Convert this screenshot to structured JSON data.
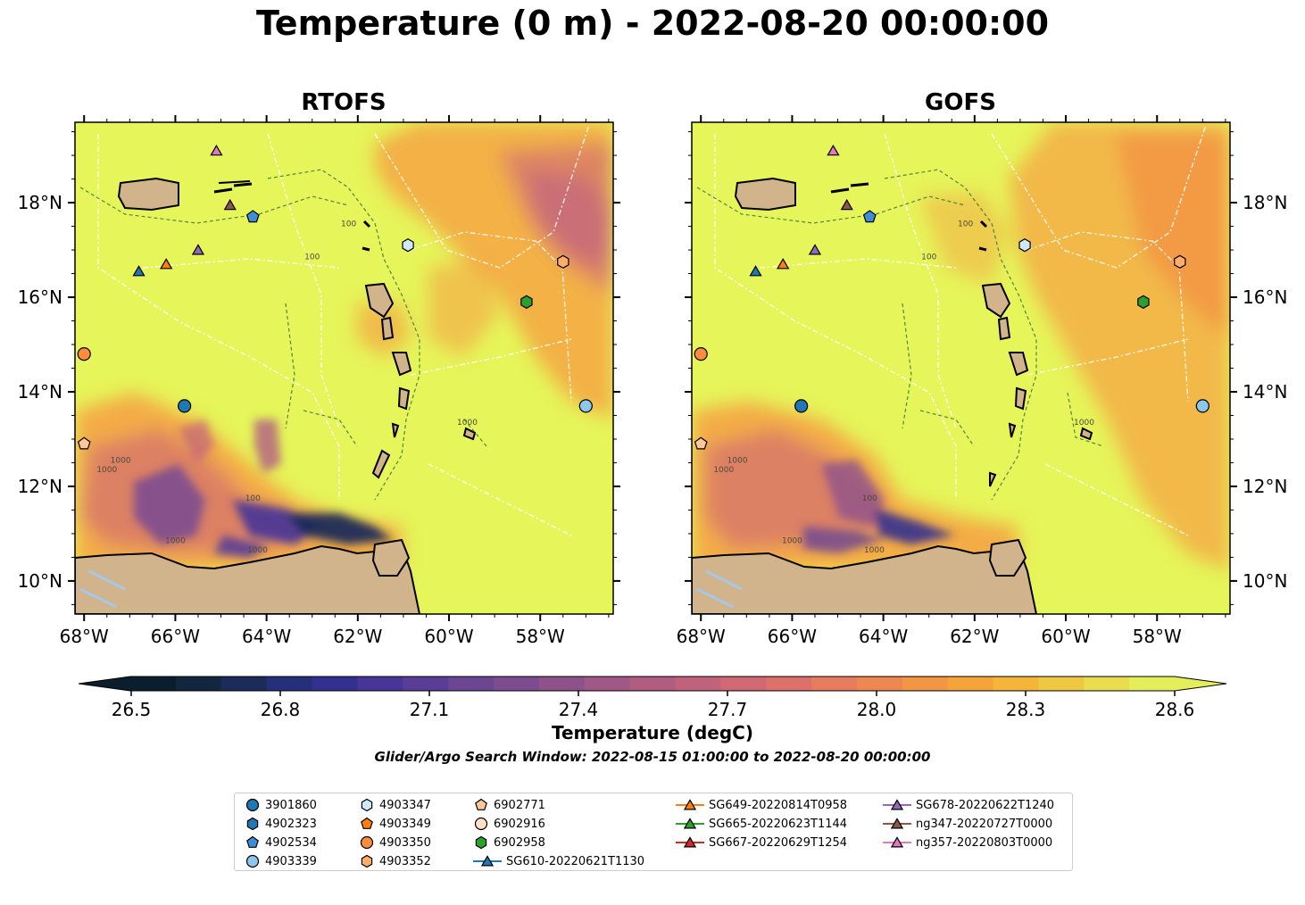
{
  "title": "Temperature (0 m) - 2022-08-20 00:00:00",
  "colors": {
    "land": "#d2b48c",
    "water_fill_high": "#e6f55a",
    "warm_orange": "#f5a443",
    "purple_mid": "#6a3d8f",
    "dark_navy": "#1a2a4a",
    "inland_water": "#a6c8e6"
  },
  "chart_data": [
    {
      "type": "heatmap",
      "panel": "RTOFS",
      "title": "RTOFS",
      "variable": "Temperature (degC)",
      "xlim": [
        -68.2,
        -56.4
      ],
      "ylim": [
        9.3,
        19.7
      ],
      "x_ticks": [
        "68°W",
        "66°W",
        "64°W",
        "62°W",
        "60°W",
        "58°W"
      ],
      "y_ticks": [
        "10°N",
        "12°N",
        "14°N",
        "16°N",
        "18°N"
      ],
      "y_tick_side": "left",
      "contour_labels": [
        "100",
        "100",
        "100",
        "1000",
        "1000",
        "1000",
        "1000",
        "1000"
      ],
      "markers": [
        {
          "id": "3901860",
          "lon": -65.8,
          "lat": 13.7
        },
        {
          "id": "4903350",
          "lon": -68.0,
          "lat": 14.8
        },
        {
          "id": "4903339",
          "lon": -57.0,
          "lat": 13.7
        },
        {
          "id": "6902958",
          "lon": -58.3,
          "lat": 15.9
        },
        {
          "id": "4903347",
          "lon": -60.9,
          "lat": 17.1
        },
        {
          "id": "4903352",
          "lon": -57.5,
          "lat": 16.75
        },
        {
          "id": "4902534",
          "lon": -64.3,
          "lat": 17.7
        },
        {
          "id": "6902771",
          "lon": -68.0,
          "lat": 12.9
        },
        {
          "id": "SG610-20220621T1130",
          "lon": -66.8,
          "lat": 16.55
        },
        {
          "id": "SG649-20220814T0958",
          "lon": -66.2,
          "lat": 16.7
        },
        {
          "id": "SG678-20220622T1240",
          "lon": -65.5,
          "lat": 17.0
        },
        {
          "id": "ng347-20220727T0000",
          "lon": -64.8,
          "lat": 17.95
        },
        {
          "id": "ng357-20220803T0000",
          "lon": -65.1,
          "lat": 19.1
        }
      ]
    },
    {
      "type": "heatmap",
      "panel": "GOFS",
      "title": "GOFS",
      "variable": "Temperature (degC)",
      "xlim": [
        -68.2,
        -56.4
      ],
      "ylim": [
        9.3,
        19.7
      ],
      "x_ticks": [
        "68°W",
        "66°W",
        "64°W",
        "62°W",
        "60°W",
        "58°W"
      ],
      "y_ticks": [
        "10°N",
        "12°N",
        "14°N",
        "16°N",
        "18°N"
      ],
      "y_tick_side": "right",
      "contour_labels": [
        "100",
        "100",
        "100",
        "1000",
        "1000",
        "1000",
        "1000",
        "1000"
      ],
      "markers": [
        {
          "id": "3901860",
          "lon": -65.8,
          "lat": 13.7
        },
        {
          "id": "4903350",
          "lon": -68.0,
          "lat": 14.8
        },
        {
          "id": "4903339",
          "lon": -57.0,
          "lat": 13.7
        },
        {
          "id": "6902958",
          "lon": -58.3,
          "lat": 15.9
        },
        {
          "id": "4903347",
          "lon": -60.9,
          "lat": 17.1
        },
        {
          "id": "4903352",
          "lon": -57.5,
          "lat": 16.75
        },
        {
          "id": "4902534",
          "lon": -64.3,
          "lat": 17.7
        },
        {
          "id": "6902771",
          "lon": -68.0,
          "lat": 12.9
        },
        {
          "id": "SG610-20220621T1130",
          "lon": -66.8,
          "lat": 16.55
        },
        {
          "id": "SG649-20220814T0958",
          "lon": -66.2,
          "lat": 16.7
        },
        {
          "id": "SG678-20220622T1240",
          "lon": -65.5,
          "lat": 17.0
        },
        {
          "id": "ng347-20220727T0000",
          "lon": -64.8,
          "lat": 17.95
        },
        {
          "id": "ng357-20220803T0000",
          "lon": -65.1,
          "lat": 19.1
        }
      ]
    }
  ],
  "colorbar": {
    "label": "Temperature (degC)",
    "vmin": 26.4,
    "vmax": 28.7,
    "ticks": [
      "26.5",
      "26.8",
      "27.1",
      "27.4",
      "27.7",
      "28.0",
      "28.3",
      "28.6"
    ],
    "tick_values": [
      26.5,
      26.8,
      27.1,
      27.4,
      27.7,
      28.0,
      28.3,
      28.6
    ],
    "colors": [
      "#0b1e2e",
      "#13263f",
      "#1b2c5a",
      "#262f7a",
      "#33308f",
      "#473597",
      "#5a3d96",
      "#6c4593",
      "#7d4c8f",
      "#8e528b",
      "#a05887",
      "#b15d82",
      "#c1627c",
      "#d16974",
      "#dd706b",
      "#e77b5e",
      "#ee8751",
      "#f29544",
      "#f4a43b",
      "#f4b53a",
      "#efc842",
      "#e9dc4d",
      "#e3ee5a"
    ],
    "extend": "both"
  },
  "search_window": "Glider/Argo Search Window: 2022-08-15 01:00:00 to 2022-08-20 00:00:00",
  "legend": {
    "entries": [
      {
        "label": "3901860",
        "marker": "circle",
        "color": "#1f77b4"
      },
      {
        "label": "4902323",
        "marker": "hexagon",
        "color": "#1f77b4"
      },
      {
        "label": "4902534",
        "marker": "pentagon",
        "color": "#3c8fd6"
      },
      {
        "label": "4903339",
        "marker": "circle",
        "color": "#8ec7ec"
      },
      {
        "label": "4903347",
        "marker": "hexagon",
        "color": "#cfe8fa"
      },
      {
        "label": "4903349",
        "marker": "pentagon",
        "color": "#ff7f0e"
      },
      {
        "label": "4903350",
        "marker": "circle",
        "color": "#fd8d3c"
      },
      {
        "label": "4903352",
        "marker": "hexagon",
        "color": "#fdae6b"
      },
      {
        "label": "6902771",
        "marker": "pentagon",
        "color": "#fdc893"
      },
      {
        "label": "6902916",
        "marker": "circle",
        "color": "#fde0c5"
      },
      {
        "label": "6902958",
        "marker": "hexagon",
        "color": "#2ca02c"
      },
      {
        "label": "SG610-20220621T1130",
        "marker": "triangle-line",
        "color": "#1f77b4"
      },
      {
        "label": "SG649-20220814T0958",
        "marker": "triangle-line",
        "color": "#ff7f0e"
      },
      {
        "label": "SG665-20220623T1144",
        "marker": "triangle-line",
        "color": "#2ca02c"
      },
      {
        "label": "SG667-20220629T1254",
        "marker": "triangle-line",
        "color": "#d62728"
      },
      {
        "label": "SG678-20220622T1240",
        "marker": "triangle-line",
        "color": "#9467bd"
      },
      {
        "label": "ng347-20220727T0000",
        "marker": "triangle-line",
        "color": "#8c564b"
      },
      {
        "label": "ng357-20220803T0000",
        "marker": "triangle-line",
        "color": "#e377c2"
      }
    ]
  }
}
